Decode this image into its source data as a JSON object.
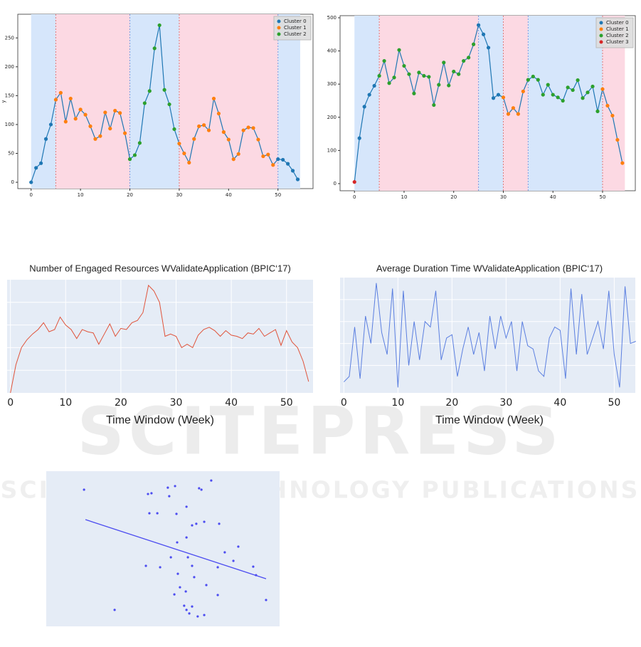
{
  "watermark": {
    "title": "SCITEPRESS",
    "subtitle": "SCIENCE AND TECHNOLOGY PUBLICATIONS"
  },
  "chart_data": [
    {
      "type": "cluster-line",
      "y_label": "y",
      "x": [
        0,
        1,
        2,
        3,
        4,
        5,
        6,
        7,
        8,
        9,
        10,
        11,
        12,
        13,
        14,
        15,
        16,
        17,
        18,
        19,
        20,
        21,
        22,
        23,
        24,
        25,
        26,
        27,
        28,
        29,
        30,
        31,
        32,
        33,
        34,
        35,
        36,
        37,
        38,
        39,
        40,
        41,
        42,
        43,
        44,
        45,
        46,
        47,
        48,
        49,
        50,
        51,
        52,
        53,
        54
      ],
      "values": [
        0,
        25,
        33,
        75,
        100,
        143,
        155,
        105,
        145,
        110,
        126,
        117,
        97,
        75,
        80,
        121,
        93,
        124,
        120,
        85,
        40,
        47,
        68,
        137,
        158,
        232,
        272,
        160,
        135,
        92,
        67,
        50,
        34,
        75,
        97,
        99,
        90,
        145,
        119,
        87,
        74,
        40,
        49,
        90,
        95,
        94,
        74,
        45,
        48,
        30,
        40,
        39,
        32,
        20,
        5
      ],
      "cluster": [
        0,
        0,
        0,
        0,
        0,
        1,
        1,
        1,
        1,
        1,
        1,
        1,
        1,
        1,
        1,
        1,
        1,
        1,
        1,
        1,
        2,
        2,
        2,
        2,
        2,
        2,
        2,
        2,
        2,
        2,
        1,
        1,
        1,
        1,
        1,
        1,
        1,
        1,
        1,
        1,
        1,
        1,
        1,
        1,
        1,
        1,
        1,
        1,
        1,
        1,
        0,
        0,
        0,
        0,
        0
      ],
      "line_color": "#1f77b4",
      "legend": [
        {
          "name": "Cluster 0",
          "color": "#1f77b4"
        },
        {
          "name": "Cluster 1",
          "color": "#ff7f0e"
        },
        {
          "name": "Cluster 2",
          "color": "#2ca02c"
        }
      ],
      "regions": [
        {
          "from": 0,
          "to": 5,
          "color": "#d6e6fb"
        },
        {
          "from": 5,
          "to": 20,
          "color": "#fcd9e3"
        },
        {
          "from": 20,
          "to": 30,
          "color": "#d6e6fb"
        },
        {
          "from": 30,
          "to": 50,
          "color": "#fcd9e3"
        },
        {
          "from": 50,
          "to": 54.5,
          "color": "#d6e6fb"
        }
      ],
      "boundaries": [
        {
          "x": 5,
          "color": "#e07b7b"
        },
        {
          "x": 20,
          "color": "#7b9be0"
        },
        {
          "x": 30,
          "color": "#e07b7b"
        },
        {
          "x": 50,
          "color": "#7b9be0"
        }
      ],
      "xlim": [
        -2.7,
        57.1
      ],
      "ylim": [
        -11,
        291
      ],
      "xticks": [
        0,
        10,
        20,
        30,
        40,
        50
      ],
      "yticks": [
        0,
        50,
        100,
        150,
        200,
        250
      ]
    },
    {
      "type": "cluster-line",
      "x": [
        0,
        1,
        2,
        3,
        4,
        5,
        6,
        7,
        8,
        9,
        10,
        11,
        12,
        13,
        14,
        15,
        16,
        17,
        18,
        19,
        20,
        21,
        22,
        23,
        24,
        25,
        26,
        27,
        28,
        29,
        30,
        31,
        32,
        33,
        34,
        35,
        36,
        37,
        38,
        39,
        40,
        41,
        42,
        43,
        44,
        45,
        46,
        47,
        48,
        49,
        50,
        51,
        52,
        53,
        54
      ],
      "values": [
        5,
        137,
        232,
        268,
        295,
        325,
        370,
        303,
        320,
        403,
        355,
        330,
        272,
        335,
        325,
        322,
        237,
        298,
        365,
        296,
        338,
        330,
        370,
        380,
        420,
        478,
        450,
        410,
        258,
        268,
        260,
        210,
        228,
        210,
        278,
        313,
        323,
        313,
        268,
        298,
        268,
        260,
        250,
        290,
        282,
        312,
        258,
        275,
        293,
        218,
        285,
        235,
        205,
        132,
        62
      ],
      "cluster": [
        3,
        0,
        0,
        0,
        0,
        2,
        2,
        2,
        2,
        2,
        2,
        2,
        2,
        2,
        2,
        2,
        2,
        2,
        2,
        2,
        2,
        2,
        2,
        2,
        2,
        0,
        0,
        0,
        0,
        0,
        1,
        1,
        1,
        1,
        1,
        2,
        2,
        2,
        2,
        2,
        2,
        2,
        2,
        2,
        2,
        2,
        2,
        2,
        2,
        2,
        1,
        1,
        1,
        1,
        1
      ],
      "line_color": "#1f77b4",
      "legend": [
        {
          "name": "Cluster 0",
          "color": "#1f77b4"
        },
        {
          "name": "Cluster 1",
          "color": "#ff7f0e"
        },
        {
          "name": "Cluster 2",
          "color": "#2ca02c"
        },
        {
          "name": "Cluster 3",
          "color": "#d62728"
        }
      ],
      "regions": [
        {
          "from": 0,
          "to": 5,
          "color": "#d6e6fb"
        },
        {
          "from": 5,
          "to": 25,
          "color": "#fcd9e3"
        },
        {
          "from": 25,
          "to": 30,
          "color": "#d6e6fb"
        },
        {
          "from": 30,
          "to": 35,
          "color": "#fcd9e3"
        },
        {
          "from": 35,
          "to": 50,
          "color": "#d6e6fb"
        },
        {
          "from": 50,
          "to": 54.5,
          "color": "#fcd9e3"
        }
      ],
      "boundaries": [
        {
          "x": 5,
          "color": "#e07b7b"
        },
        {
          "x": 25,
          "color": "#7b9be0"
        },
        {
          "x": 30,
          "color": "#e07b7b"
        },
        {
          "x": 35,
          "color": "#7b9be0"
        },
        {
          "x": 50,
          "color": "#e07b7b"
        }
      ],
      "xlim": [
        -2.9,
        56.6
      ],
      "ylim": [
        -21.5,
        506.4
      ],
      "xticks": [
        0,
        10,
        20,
        30,
        40,
        50
      ],
      "yticks": [
        0,
        100,
        200,
        300,
        400,
        500
      ]
    },
    {
      "type": "line",
      "title": "Number of Engaged Resources WValidateApplication (BPIC‘17)",
      "x_label": "Time Window (Week)",
      "x": [
        0,
        1,
        2,
        3,
        4,
        5,
        6,
        7,
        8,
        9,
        10,
        11,
        12,
        13,
        14,
        15,
        16,
        17,
        18,
        19,
        20,
        21,
        22,
        23,
        24,
        25,
        26,
        27,
        28,
        29,
        30,
        31,
        32,
        33,
        34,
        35,
        36,
        37,
        38,
        39,
        40,
        41,
        42,
        43,
        44,
        45,
        46,
        47,
        48,
        49,
        50,
        51,
        52,
        53,
        54
      ],
      "values": [
        0,
        25,
        40,
        47,
        52,
        56,
        62,
        54,
        56,
        67,
        60,
        56,
        48,
        56,
        54,
        53,
        43,
        52,
        61,
        50,
        57,
        56,
        62,
        64,
        71,
        95,
        90,
        80,
        50,
        52,
        50,
        40,
        43,
        40,
        51,
        56,
        58,
        55,
        50,
        55,
        51,
        50,
        48,
        53,
        52,
        57,
        50,
        53,
        56,
        42,
        55,
        45,
        40,
        28,
        10
      ],
      "color": "#e0533a",
      "xlim": [
        -0.6,
        54.8
      ],
      "ylim": [
        0,
        100
      ],
      "xticks": [
        0,
        10,
        20,
        30,
        40,
        50
      ],
      "ygrid": [
        20,
        40,
        60,
        80
      ]
    },
    {
      "type": "line",
      "title": "Average Duration Time WValidateApplication (BPIC‘17)",
      "x_label": "Time Window (Week)",
      "x": [
        0,
        1,
        2,
        3,
        4,
        5,
        6,
        7,
        8,
        9,
        10,
        11,
        12,
        13,
        14,
        15,
        16,
        17,
        18,
        19,
        20,
        21,
        22,
        23,
        24,
        25,
        26,
        27,
        28,
        29,
        30,
        31,
        32,
        33,
        34,
        35,
        36,
        37,
        38,
        39,
        40,
        41,
        42,
        43,
        44,
        45,
        46,
        47,
        48,
        49,
        50,
        51,
        52,
        53,
        54
      ],
      "values": [
        5,
        10,
        55,
        8,
        65,
        40,
        95,
        50,
        30,
        90,
        0,
        88,
        20,
        60,
        25,
        60,
        55,
        88,
        25,
        45,
        48,
        10,
        35,
        55,
        30,
        50,
        15,
        65,
        35,
        65,
        45,
        60,
        15,
        60,
        38,
        35,
        15,
        10,
        45,
        55,
        52,
        8,
        90,
        30,
        85,
        30,
        45,
        60,
        35,
        88,
        30,
        0,
        92,
        40,
        42
      ],
      "color": "#5b7fe0",
      "xlim": [
        -0.7,
        53.9
      ],
      "ylim": [
        -5,
        100
      ],
      "xticks": [
        0,
        10,
        20,
        30,
        40,
        50
      ],
      "ygrid": [
        20,
        40,
        60,
        80
      ]
    },
    {
      "type": "scatter",
      "x": [
        16.2,
        29.3,
        43.6,
        45.1,
        44.2,
        47.6,
        52.1,
        55.2,
        52.7,
        55.8,
        60.1,
        65.5,
        66.5,
        70.7,
        60.1,
        62.5,
        64.3,
        67.7,
        74.1,
        76.5,
        82.3,
        56.1,
        42.7,
        48.8,
        53.4,
        60.7,
        62.5,
        56.4,
        63.4,
        73.5,
        80.2,
        88.7,
        89.9,
        57.3,
        59.8,
        68.6,
        73.5,
        54.9,
        59.1,
        60.1,
        62.5,
        64.9,
        67.7,
        61.3,
        94.2
      ],
      "values": [
        88.1,
        10.6,
        85.3,
        85.8,
        72.9,
        72.9,
        89.4,
        90.4,
        83.9,
        72.5,
        77.1,
        89.0,
        88.1,
        94.0,
        57.3,
        65.1,
        66.1,
        67.4,
        66.1,
        47.7,
        51.4,
        54.1,
        39.0,
        38.1,
        44.5,
        44.5,
        39.0,
        33.9,
        31.7,
        38.1,
        42.2,
        38.5,
        33.0,
        25.2,
        22.5,
        26.6,
        20.2,
        20.6,
        13.3,
        10.6,
        12.8,
        6.4,
        7.3,
        8.3,
        17.0
      ],
      "color": "#4b4bf0",
      "trend_x": [
        16.8,
        94.2
      ],
      "trend_y": [
        68.8,
        30.7
      ],
      "xlim": [
        0,
        100
      ],
      "ylim": [
        0,
        100
      ]
    }
  ]
}
